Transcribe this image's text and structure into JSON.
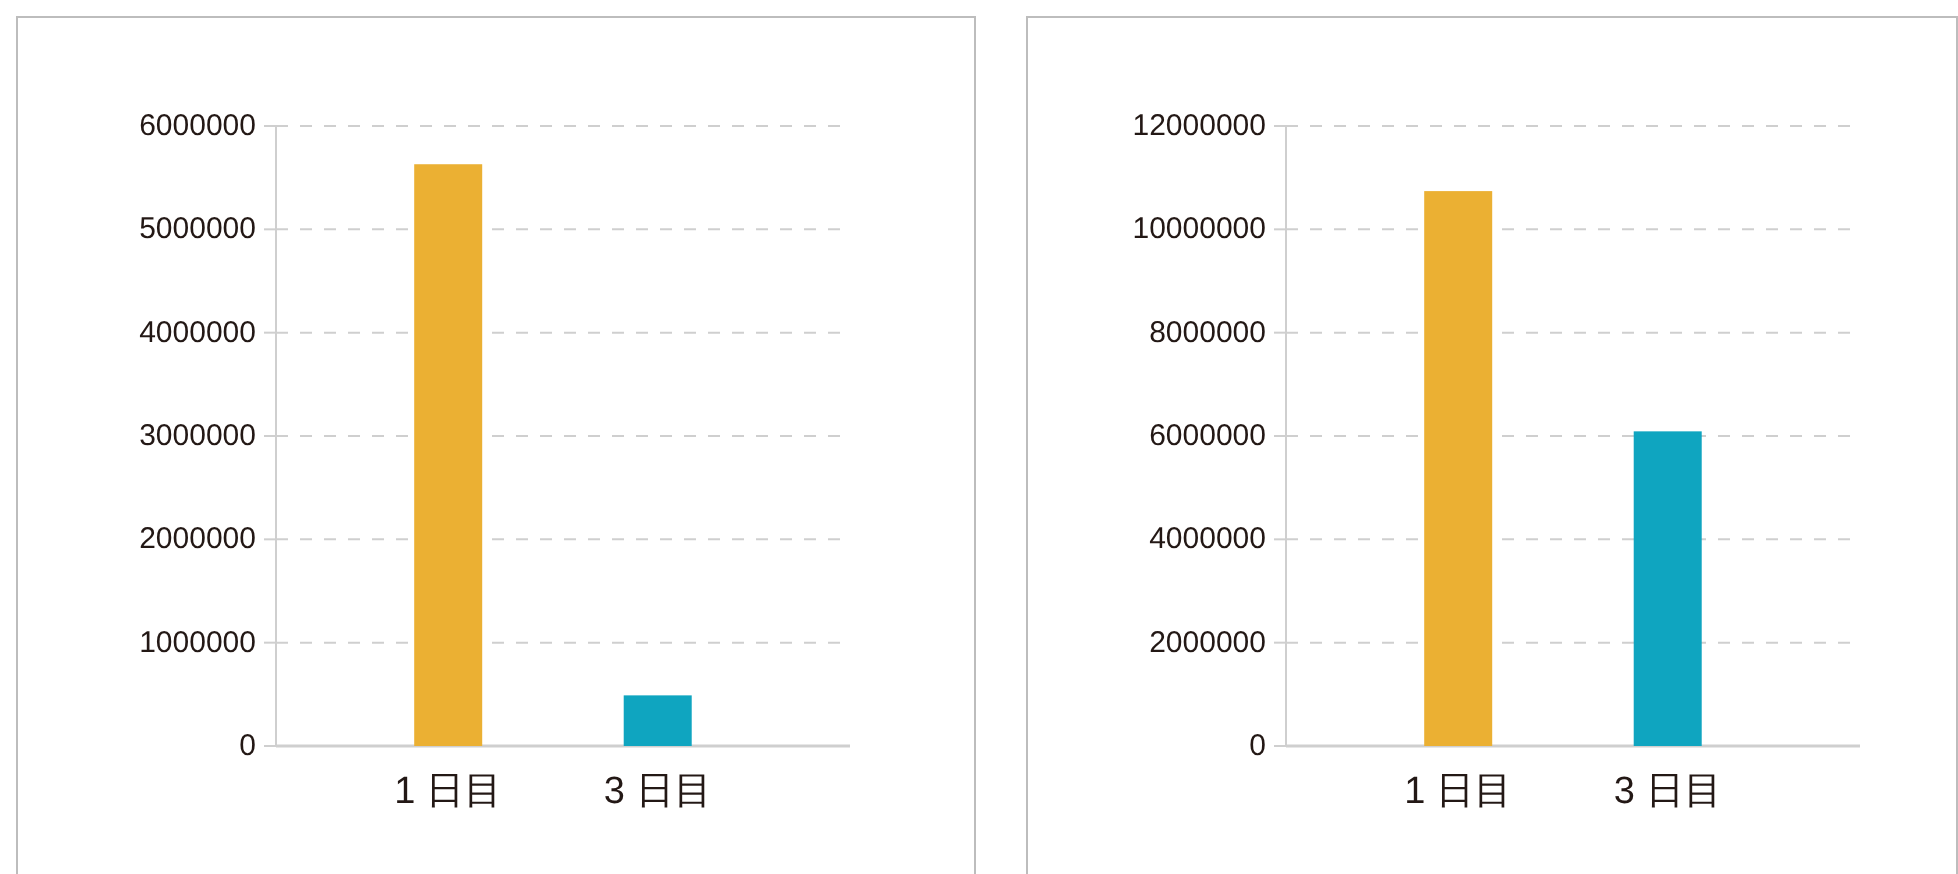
{
  "chart_data": [
    {
      "type": "bar",
      "categories": [
        "1 日目",
        "3 日目"
      ],
      "values": [
        5630000,
        490000
      ],
      "colors": [
        "#ebb033",
        "#0fa5c0"
      ],
      "ylim": [
        0,
        6000000
      ],
      "yticks": [
        0,
        1000000,
        2000000,
        3000000,
        4000000,
        5000000,
        6000000
      ],
      "grid": "y"
    },
    {
      "type": "bar",
      "categories": [
        "1 日目",
        "3 日目"
      ],
      "values": [
        10740000,
        6090000
      ],
      "colors": [
        "#ebb033",
        "#0fa5c0"
      ],
      "ylim": [
        0,
        12000000
      ],
      "yticks": [
        0,
        2000000,
        4000000,
        6000000,
        8000000,
        10000000,
        12000000
      ],
      "grid": "y"
    }
  ]
}
